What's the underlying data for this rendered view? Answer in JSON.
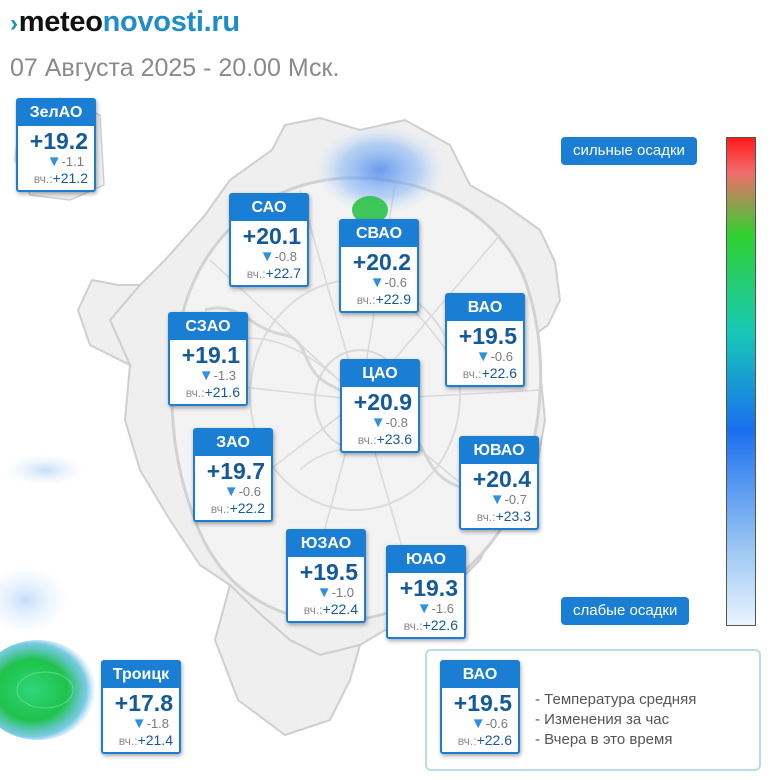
{
  "header": {
    "logo_part1": "meteo",
    "logo_part2": "novosti.ru",
    "subtitle": "07 Августа 2025 - 20.00 Мск."
  },
  "yesterday_prefix": "вч.:",
  "change_icon": "triangle-down-icon",
  "districts": [
    {
      "name": "ЗелАО",
      "temp": "+19.2",
      "change": "-1.1",
      "yesterday": "+21.2"
    },
    {
      "name": "САО",
      "temp": "+20.1",
      "change": "-0.8",
      "yesterday": "+22.7"
    },
    {
      "name": "СВАО",
      "temp": "+20.2",
      "change": "-0.6",
      "yesterday": "+22.9"
    },
    {
      "name": "ВАО",
      "temp": "+19.5",
      "change": "-0.6",
      "yesterday": "+22.6"
    },
    {
      "name": "СЗАО",
      "temp": "+19.1",
      "change": "-1.3",
      "yesterday": "+21.6"
    },
    {
      "name": "ЦАО",
      "temp": "+20.9",
      "change": "-0.8",
      "yesterday": "+23.6"
    },
    {
      "name": "ЗАО",
      "temp": "+19.7",
      "change": "-0.6",
      "yesterday": "+22.2"
    },
    {
      "name": "ЮВАО",
      "temp": "+20.4",
      "change": "-0.7",
      "yesterday": "+23.3"
    },
    {
      "name": "ЮЗАО",
      "temp": "+19.5",
      "change": "-1.0",
      "yesterday": "+22.4"
    },
    {
      "name": "ЮАО",
      "temp": "+19.3",
      "change": "-1.6",
      "yesterday": "+22.6"
    },
    {
      "name": "Троицк",
      "temp": "+17.8",
      "change": "-1.8",
      "yesterday": "+21.4"
    }
  ],
  "precip_scale": {
    "top_label": "сильные осадки",
    "bottom_label": "слабые осадки",
    "colors": [
      "#ff1a1a",
      "#2fd12f",
      "#1a6ff0",
      "#e9f4ff"
    ]
  },
  "legend": {
    "example": {
      "name": "ВАО",
      "temp": "+19.5",
      "change": "-0.6",
      "yesterday": "+22.6"
    },
    "items": [
      "- Температура средняя",
      "- Изменения за час",
      "- Вчера в это время"
    ]
  }
}
